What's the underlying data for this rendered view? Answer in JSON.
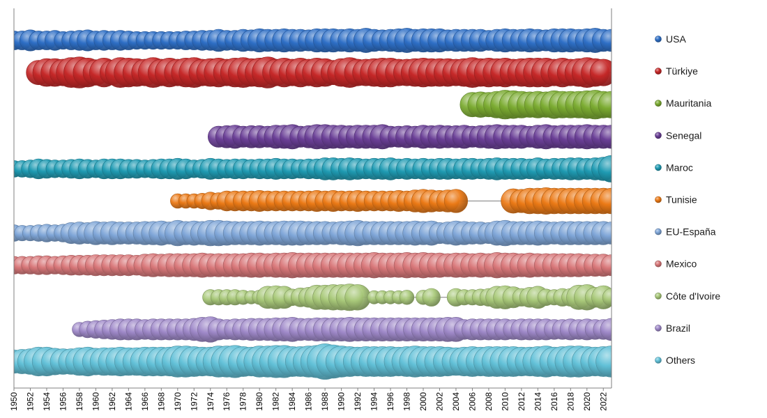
{
  "chart_data": {
    "type": "scatter",
    "subtype": "bubble-timeline",
    "title": "",
    "xlabel": "",
    "ylabel": "",
    "xlim": [
      1950,
      2023
    ],
    "x_tick_labels": [
      "1950",
      "1952",
      "1954",
      "1956",
      "1958",
      "1960",
      "1962",
      "1964",
      "1966",
      "1968",
      "1970",
      "1972",
      "1974",
      "1976",
      "1978",
      "1980",
      "1982",
      "1984",
      "1986",
      "1988",
      "1990",
      "1992",
      "1994",
      "1996",
      "1998",
      "2000",
      "2002",
      "2004",
      "2006",
      "2008",
      "2010",
      "2012",
      "2014",
      "2016",
      "2018",
      "2020",
      "2022"
    ],
    "legend_position": "right",
    "grid": false,
    "series": [
      {
        "name": "USA",
        "color": "#2e6fc6",
        "start": 1950,
        "values": [
          1.7,
          1.7,
          1.9,
          1.7,
          1.7,
          1.8,
          1.6,
          1.7,
          1.8,
          1.9,
          1.7,
          1.8,
          1.7,
          1.8,
          1.7,
          1.6,
          1.6,
          1.6,
          1.6,
          1.6,
          1.6,
          1.7,
          1.7,
          1.8,
          1.8,
          2,
          1.8,
          1.8,
          2,
          1.9,
          2.1,
          2,
          2,
          2.1,
          2,
          2,
          1.9,
          2.1,
          2.1,
          2.1,
          2,
          2.1,
          2,
          2.2,
          2,
          1.9,
          2,
          2.1,
          2.2,
          2,
          2.1,
          2.1,
          2.1,
          1.9,
          2,
          2,
          2,
          2,
          1.8,
          2,
          2.1,
          2,
          2,
          2.1,
          2,
          1.9,
          2.1,
          2.1,
          2.1,
          2,
          2.1,
          2.2,
          2,
          2
        ]
      },
      {
        "name": "Türkiye",
        "color": "#c62828",
        "start": 1950,
        "values": [
          0,
          0,
          0,
          2.2,
          2.5,
          2.5,
          2.4,
          2.7,
          2.8,
          2.6,
          2.3,
          2.6,
          2.2,
          2.7,
          2.6,
          2.5,
          2.4,
          2.7,
          2.4,
          2.6,
          2.4,
          2.6,
          2.7,
          2.4,
          2.5,
          2.6,
          2.4,
          2.6,
          2.7,
          2.5,
          2.6,
          2.8,
          2.4,
          2.6,
          2.4,
          2.6,
          2.4,
          2.6,
          2.5,
          2.2,
          2.5,
          2.7,
          2.4,
          2.4,
          2.5,
          2.6,
          2.6,
          2.4,
          2.4,
          2.5,
          2.6,
          2.5,
          2.5,
          2.5,
          2.4,
          2.5,
          2.7,
          2.5,
          2.6,
          2.5,
          2.6,
          2.4,
          2.5,
          2.6,
          2.6,
          2.6,
          2.4,
          2.6,
          2.4,
          2.5,
          2.7,
          2.5,
          2.4,
          0
        ]
      },
      {
        "name": "Mauritania",
        "color": "#7cac32",
        "start": 1950,
        "values": [
          0,
          0,
          0,
          0,
          0,
          0,
          0,
          0,
          0,
          0,
          0,
          0,
          0,
          0,
          0,
          0,
          0,
          0,
          0,
          0,
          0,
          0,
          0,
          0,
          0,
          0,
          0,
          0,
          0,
          0,
          0,
          0,
          0,
          0,
          0,
          0,
          0,
          0,
          0,
          0,
          0,
          0,
          0,
          0,
          0,
          0,
          0,
          0,
          0,
          0,
          0,
          0,
          0,
          0,
          0,
          0,
          2.2,
          2.3,
          2.2,
          2.4,
          2.6,
          2.5,
          2.4,
          2.3,
          2.4,
          2.3,
          2.5,
          2.4,
          2.4,
          2.4,
          2.5,
          2.6,
          2.4,
          2.4
        ]
      },
      {
        "name": "Senegal",
        "color": "#6a3f96",
        "start": 1950,
        "values": [
          0,
          0,
          0,
          0,
          0,
          0,
          0,
          0,
          0,
          0,
          0,
          0,
          0,
          0,
          0,
          0,
          0,
          0,
          0,
          0,
          0,
          0,
          0,
          0,
          0,
          1.9,
          2,
          2.1,
          1.9,
          2,
          2,
          1.9,
          2.1,
          2.1,
          2.2,
          1.9,
          2,
          2.2,
          2.2,
          2.1,
          2.1,
          2,
          2.1,
          2.1,
          2.1,
          2.2,
          1.9,
          1.9,
          2,
          1.9,
          2.1,
          2,
          2.1,
          2,
          2,
          2.1,
          1.9,
          2,
          2.1,
          2.2,
          2.1,
          2.1,
          2.1,
          1.9,
          2.1,
          2.2,
          2,
          2.1,
          2.1,
          2.1,
          2.2,
          2.1,
          2.1,
          2.1
        ]
      },
      {
        "name": "Maroc",
        "color": "#1f9bb3",
        "start": 1950,
        "values": [
          1.5,
          1.5,
          1.6,
          1.8,
          1.7,
          1.6,
          1.6,
          1.7,
          1.8,
          1.7,
          1.6,
          1.8,
          1.8,
          1.8,
          1.7,
          1.7,
          1.6,
          1.7,
          1.8,
          1.8,
          1.9,
          1.8,
          1.6,
          1.7,
          1.9,
          1.8,
          1.7,
          1.8,
          1.8,
          1.7,
          1.8,
          1.8,
          1.9,
          1.8,
          1.8,
          1.7,
          1.8,
          1.8,
          2,
          2,
          1.9,
          2,
          1.9,
          1.8,
          1.9,
          1.9,
          2,
          1.8,
          1.9,
          1.8,
          1.9,
          1.8,
          1.9,
          1.9,
          1.8,
          1.9,
          1.9,
          1.8,
          1.9,
          2,
          1.9,
          1.9,
          1.9,
          1.8,
          2,
          1.8,
          1.9,
          1.9,
          2,
          2,
          1.9,
          2,
          2.1,
          2.4
        ]
      },
      {
        "name": "Tunisie",
        "color": "#ec7a16",
        "start": 1950,
        "values": [
          0,
          0,
          0,
          0,
          0,
          0,
          0,
          0,
          0,
          0,
          0,
          0,
          0,
          0,
          0,
          0,
          0,
          0,
          0,
          0,
          1.3,
          1.3,
          1.3,
          1.4,
          1.6,
          1.5,
          1.8,
          1.8,
          1.8,
          1.8,
          1.9,
          1.8,
          1.8,
          1.8,
          1.8,
          1.8,
          1.8,
          1.9,
          1.8,
          1.9,
          1.8,
          1.8,
          1.9,
          1.8,
          1.8,
          1.8,
          1.8,
          1.9,
          1.8,
          2,
          2.1,
          2,
          1.9,
          2,
          2.1,
          0,
          0,
          0,
          0,
          0,
          0,
          2.2,
          2.1,
          2.3,
          2.3,
          2.4,
          2.3,
          2.3,
          2.3,
          2.3,
          2.3,
          2.3,
          2.3,
          2.3
        ]
      },
      {
        "name": "EU-España",
        "color": "#7fa6d8",
        "start": 1950,
        "values": [
          1.5,
          1.4,
          1.4,
          1.5,
          1.6,
          1.5,
          1.6,
          1.9,
          2,
          1.9,
          2.1,
          2,
          2.1,
          2,
          2,
          2,
          2.1,
          2.1,
          2.2,
          2,
          2.3,
          2.1,
          2.2,
          2.1,
          2.3,
          2.3,
          2.2,
          2.1,
          2.1,
          2.1,
          2.2,
          2.1,
          2.1,
          2.2,
          2.2,
          2.2,
          2.1,
          2.1,
          2.1,
          2,
          2.1,
          2.2,
          2.3,
          2.1,
          2.1,
          2.1,
          2.1,
          2.1,
          2.1,
          2.2,
          2.1,
          2.2,
          1.9,
          2,
          2.2,
          2.1,
          2,
          2,
          1.9,
          2.2,
          2.3,
          2.1,
          2.1,
          2.1,
          2.2,
          2.1,
          2,
          2.1,
          2.1,
          2.1,
          2.1,
          2.1,
          2.1,
          2
        ]
      },
      {
        "name": "Mexico",
        "color": "#d9787a",
        "start": 1950,
        "values": [
          1.6,
          1.6,
          1.6,
          1.7,
          1.7,
          1.6,
          1.7,
          1.8,
          1.8,
          1.8,
          1.9,
          1.9,
          1.9,
          1.9,
          1.9,
          1.8,
          2,
          2.1,
          2,
          2.1,
          2.1,
          2.1,
          2.1,
          2.2,
          2.1,
          2.1,
          2.1,
          2.1,
          2.1,
          2.2,
          2.2,
          2.1,
          2.2,
          2.2,
          2.3,
          2.2,
          2.2,
          2.2,
          2.2,
          2.2,
          2.2,
          2.2,
          2.2,
          2.2,
          2.3,
          2.2,
          2.2,
          2.2,
          2.3,
          2.2,
          2.3,
          2.2,
          2.2,
          2.1,
          2.2,
          2.2,
          2.1,
          2.2,
          2.1,
          2.3,
          2.2,
          2.2,
          2.1,
          2.2,
          2.1,
          2.1,
          2.1,
          2.1,
          2.1,
          2.1,
          2,
          2,
          2,
          1.9
        ]
      },
      {
        "name": "Côte d'Ivoire",
        "color": "#a9c97a",
        "start": 1950,
        "values": [
          0,
          0,
          0,
          0,
          0,
          0,
          0,
          0,
          0,
          0,
          0,
          0,
          0,
          0,
          0,
          0,
          0,
          0,
          0,
          0,
          0,
          0,
          0,
          0,
          1.4,
          1.4,
          1.4,
          1.4,
          1.3,
          1.2,
          1.3,
          2,
          2.1,
          2,
          1.5,
          1.7,
          1.8,
          2.2,
          2.2,
          2.3,
          2.3,
          2.4,
          2.3,
          0,
          1.2,
          1.2,
          1.2,
          1.2,
          1.3,
          0,
          1.3,
          1.6,
          0,
          0,
          1.6,
          1.4,
          1.4,
          1.5,
          1.6,
          2,
          2.1,
          1.9,
          1.6,
          1.8,
          2,
          1.5,
          1.4,
          1.6,
          1.6,
          2.2,
          2.3,
          1.8,
          2.1,
          1.6
        ]
      },
      {
        "name": "Brazil",
        "color": "#9f89c9",
        "start": 1950,
        "values": [
          0,
          0,
          0,
          0,
          0,
          0,
          0,
          0,
          1.3,
          1.5,
          1.6,
          1.7,
          1.8,
          1.9,
          1.9,
          1.9,
          1.8,
          1.9,
          1.9,
          1.9,
          1.9,
          1.9,
          2,
          2.2,
          2.3,
          1.9,
          1.8,
          1.9,
          1.9,
          2,
          2,
          2,
          2.1,
          2.1,
          2.2,
          2,
          2,
          2.1,
          2.1,
          2.1,
          2.1,
          2.2,
          2.1,
          2.1,
          2.1,
          2.1,
          2.1,
          2.1,
          2.1,
          2.1,
          2.1,
          2.1,
          2.1,
          2.2,
          2.2,
          1.8,
          1.9,
          1.9,
          1.9,
          1.9,
          1.9,
          1.8,
          1.9,
          1.9,
          1.9,
          1.9,
          1.8,
          1.8,
          1.9,
          1.8,
          1.9,
          1.8,
          1.8,
          2
        ]
      },
      {
        "name": "Others",
        "color": "#62c1d8",
        "start": 1950,
        "values": [
          2.1,
          2.2,
          2.3,
          2.6,
          2.6,
          2.4,
          2.3,
          2.3,
          2.5,
          2.6,
          2.4,
          2.5,
          2.5,
          2.6,
          2.5,
          2.5,
          2.6,
          2.6,
          2.6,
          2.6,
          2.8,
          2.8,
          2.7,
          2.6,
          2.6,
          2.8,
          2.8,
          2.9,
          2.7,
          2.6,
          2.8,
          2.8,
          2.9,
          2.9,
          2.7,
          2.7,
          2.8,
          2.9,
          3.2,
          3,
          2.8,
          2.7,
          2.6,
          2.7,
          2.7,
          2.7,
          2.7,
          2.6,
          2.7,
          2.8,
          2.7,
          2.7,
          2.7,
          2.6,
          2.5,
          2.6,
          2.7,
          2.6,
          2.7,
          2.7,
          2.7,
          2.7,
          2.6,
          2.6,
          2.7,
          2.8,
          2.6,
          2.7,
          2.8,
          2.8,
          2.7,
          2.6,
          2.7,
          2.8
        ]
      }
    ]
  }
}
